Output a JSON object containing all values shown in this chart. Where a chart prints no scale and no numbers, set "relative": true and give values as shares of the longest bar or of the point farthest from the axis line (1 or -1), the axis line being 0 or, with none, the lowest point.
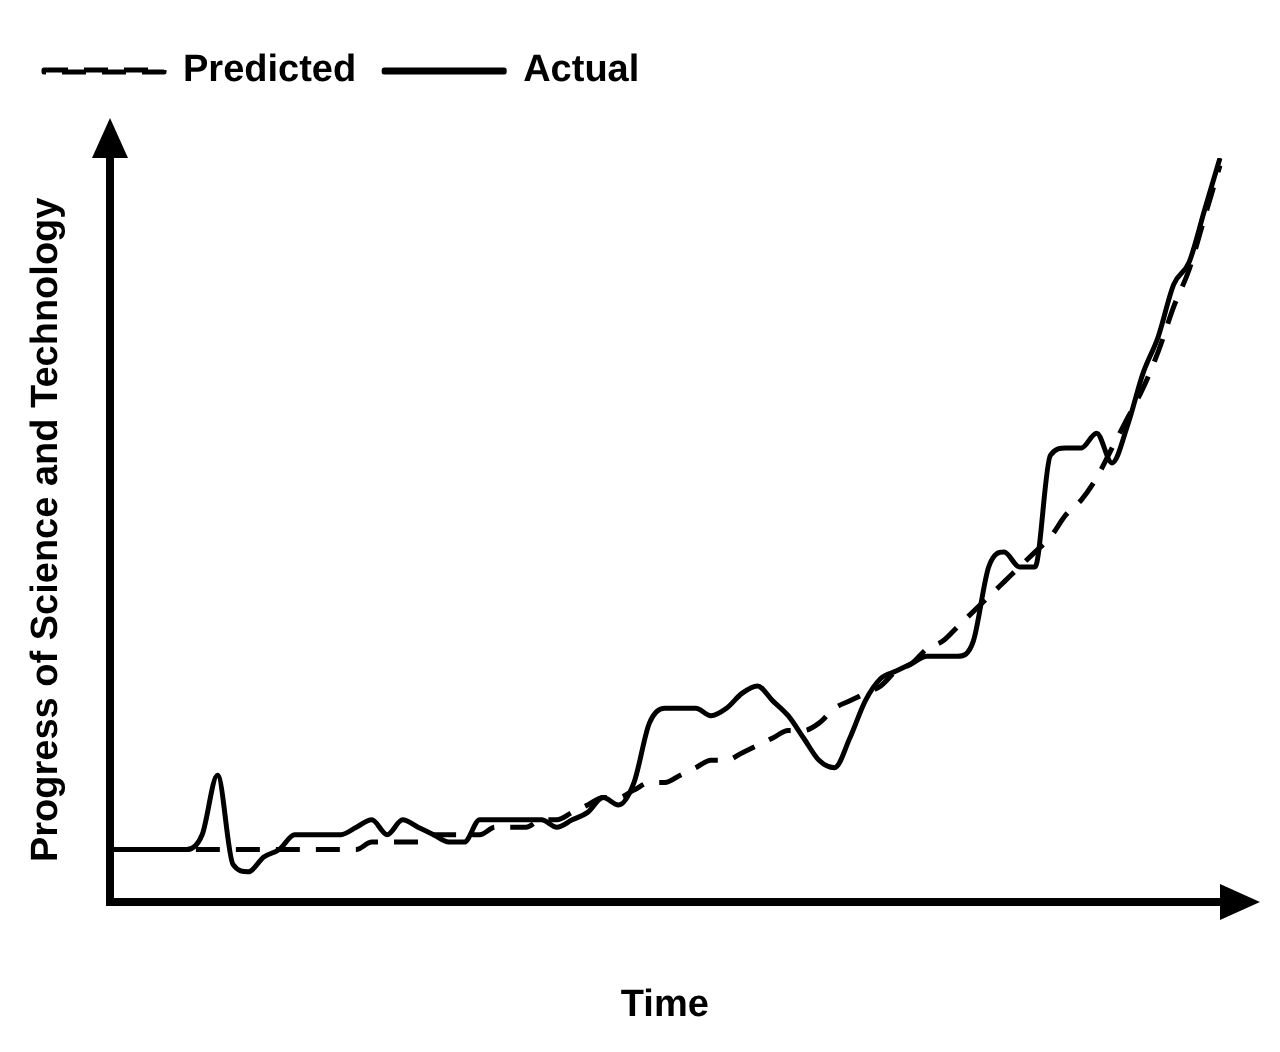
{
  "chart_data": {
    "type": "line",
    "xlabel": "Time",
    "ylabel": "Progress of Science and Technology",
    "relative": true,
    "legend": "top left",
    "grid": false,
    "marker": "none",
    "categories": [
      null,
      null,
      null,
      null,
      null,
      null,
      null,
      null,
      null,
      null,
      null,
      null,
      null,
      null,
      null,
      null,
      null,
      null,
      null,
      null,
      null,
      null,
      null,
      null,
      null,
      null,
      null,
      null,
      null,
      null,
      null,
      null,
      null,
      null,
      null,
      null,
      null,
      null,
      null,
      null,
      null,
      null,
      null,
      null,
      null,
      null,
      null,
      null,
      null,
      null,
      null,
      null,
      null,
      null,
      null,
      null,
      null,
      null,
      null,
      null,
      null,
      null,
      null,
      null,
      null,
      null,
      null,
      null,
      null,
      null,
      null,
      null,
      null
    ],
    "series": [
      {
        "name": "Predicted",
        "color": "#000000",
        "line_style": "dashed",
        "values": [
          null,
          null,
          null,
          0.07,
          0.07,
          0.07,
          0.07,
          0.07,
          0.07,
          0.07,
          0.07,
          0.07,
          0.07,
          0.07,
          0.07,
          0.07,
          0.07,
          0.08,
          0.08,
          0.08,
          0.08,
          0.09,
          0.09,
          0.09,
          0.09,
          0.1,
          0.1,
          0.1,
          0.11,
          0.11,
          0.12,
          0.13,
          0.14,
          0.14,
          0.15,
          0.16,
          0.16,
          0.17,
          0.18,
          0.19,
          0.19,
          0.2,
          0.21,
          0.22,
          0.23,
          0.23,
          0.24,
          0.26,
          0.27,
          0.28,
          0.29,
          0.31,
          0.32,
          0.34,
          0.35,
          0.37,
          0.39,
          0.41,
          0.43,
          0.45,
          0.47,
          0.49,
          0.52,
          0.54,
          0.57,
          0.61,
          0.65,
          0.69,
          0.74,
          0.8,
          0.85,
          0.92,
          0.99
        ]
      },
      {
        "name": "Actual",
        "color": "#000000",
        "line_style": "solid",
        "values": [
          0.07,
          0.07,
          0.07,
          0.07,
          0.07,
          0.07,
          0.09,
          0.17,
          0.05,
          0.04,
          0.06,
          0.07,
          0.09,
          0.09,
          0.09,
          0.09,
          0.1,
          0.11,
          0.09,
          0.11,
          0.1,
          0.09,
          0.08,
          0.08,
          0.11,
          0.11,
          0.11,
          0.11,
          0.11,
          0.1,
          0.11,
          0.12,
          0.14,
          0.13,
          0.16,
          0.24,
          0.26,
          0.26,
          0.26,
          0.25,
          0.26,
          0.28,
          0.29,
          0.27,
          0.25,
          0.22,
          0.19,
          0.18,
          0.22,
          0.27,
          0.3,
          0.31,
          0.32,
          0.33,
          0.33,
          0.33,
          0.35,
          0.45,
          0.47,
          0.45,
          0.45,
          0.6,
          0.61,
          0.61,
          0.63,
          0.59,
          0.64,
          0.71,
          0.76,
          0.83,
          0.86,
          0.93,
          1.0
        ]
      }
    ]
  }
}
